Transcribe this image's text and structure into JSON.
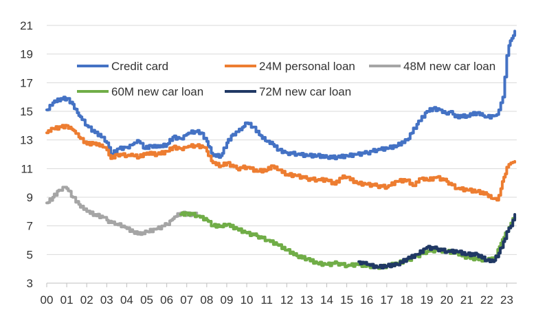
{
  "chart_data": {
    "type": "line",
    "title": "",
    "xlabel": "",
    "ylabel": "",
    "xlim": [
      2000,
      2023.5
    ],
    "ylim": [
      3,
      21
    ],
    "grid": true,
    "legend_position": "top-left",
    "y_ticks": [
      "3",
      "5",
      "7",
      "9",
      "11",
      "13",
      "15",
      "17",
      "19",
      "21"
    ],
    "x_ticks": [
      "00",
      "01",
      "02",
      "03",
      "04",
      "05",
      "06",
      "07",
      "08",
      "09",
      "10",
      "11",
      "12",
      "13",
      "14",
      "15",
      "16",
      "17",
      "18",
      "19",
      "20",
      "21",
      "22",
      "23"
    ],
    "series": [
      {
        "name": "Credit card",
        "color": "#4472c4",
        "points": [
          [
            2000.0,
            15.1
          ],
          [
            2000.3,
            15.6
          ],
          [
            2000.7,
            15.9
          ],
          [
            2001.0,
            15.9
          ],
          [
            2001.3,
            15.5
          ],
          [
            2001.6,
            14.7
          ],
          [
            2002.0,
            14.0
          ],
          [
            2002.4,
            13.5
          ],
          [
            2002.8,
            13.2
          ],
          [
            2003.0,
            12.8
          ],
          [
            2003.2,
            12.0
          ],
          [
            2003.6,
            12.4
          ],
          [
            2004.0,
            12.5
          ],
          [
            2004.3,
            12.7
          ],
          [
            2004.6,
            12.9
          ],
          [
            2004.9,
            12.4
          ],
          [
            2005.2,
            12.6
          ],
          [
            2005.6,
            12.5
          ],
          [
            2006.0,
            12.7
          ],
          [
            2006.3,
            13.2
          ],
          [
            2006.7,
            13.1
          ],
          [
            2007.0,
            13.4
          ],
          [
            2007.4,
            13.6
          ],
          [
            2007.7,
            13.5
          ],
          [
            2008.0,
            12.9
          ],
          [
            2008.3,
            11.9
          ],
          [
            2008.7,
            11.9
          ],
          [
            2009.0,
            12.8
          ],
          [
            2009.3,
            13.4
          ],
          [
            2009.7,
            13.7
          ],
          [
            2010.0,
            14.2
          ],
          [
            2010.3,
            13.9
          ],
          [
            2010.7,
            13.3
          ],
          [
            2011.0,
            12.9
          ],
          [
            2011.3,
            12.7
          ],
          [
            2011.6,
            12.3
          ],
          [
            2012.0,
            12.1
          ],
          [
            2012.5,
            12.0
          ],
          [
            2013.0,
            11.9
          ],
          [
            2013.5,
            11.9
          ],
          [
            2014.0,
            11.8
          ],
          [
            2014.5,
            11.8
          ],
          [
            2015.0,
            11.9
          ],
          [
            2015.5,
            12.0
          ],
          [
            2016.0,
            12.1
          ],
          [
            2016.5,
            12.3
          ],
          [
            2017.0,
            12.4
          ],
          [
            2017.5,
            12.6
          ],
          [
            2018.0,
            13.0
          ],
          [
            2018.5,
            14.1
          ],
          [
            2019.0,
            15.0
          ],
          [
            2019.3,
            15.2
          ],
          [
            2019.7,
            15.1
          ],
          [
            2020.0,
            14.8
          ],
          [
            2020.2,
            15.0
          ],
          [
            2020.4,
            14.6
          ],
          [
            2021.0,
            14.7
          ],
          [
            2021.5,
            14.9
          ],
          [
            2021.8,
            14.7
          ],
          [
            2022.0,
            14.6
          ],
          [
            2022.4,
            14.7
          ],
          [
            2022.6,
            15.1
          ],
          [
            2022.8,
            16.0
          ],
          [
            2022.9,
            17.4
          ],
          [
            2023.0,
            18.9
          ],
          [
            2023.1,
            19.6
          ],
          [
            2023.25,
            20.1
          ],
          [
            2023.4,
            20.6
          ]
        ]
      },
      {
        "name": "24M personal loan",
        "color": "#ed7d31",
        "points": [
          [
            2000.0,
            13.5
          ],
          [
            2000.3,
            13.8
          ],
          [
            2000.7,
            13.9
          ],
          [
            2001.0,
            14.0
          ],
          [
            2001.3,
            13.7
          ],
          [
            2001.6,
            13.2
          ],
          [
            2002.0,
            12.7
          ],
          [
            2002.4,
            12.8
          ],
          [
            2002.8,
            12.5
          ],
          [
            2003.0,
            12.3
          ],
          [
            2003.2,
            11.7
          ],
          [
            2003.5,
            12.0
          ],
          [
            2004.0,
            11.9
          ],
          [
            2004.3,
            11.9
          ],
          [
            2004.6,
            11.8
          ],
          [
            2005.0,
            12.1
          ],
          [
            2005.5,
            12.0
          ],
          [
            2006.0,
            12.2
          ],
          [
            2006.3,
            12.5
          ],
          [
            2006.7,
            12.4
          ],
          [
            2007.0,
            12.5
          ],
          [
            2007.4,
            12.6
          ],
          [
            2007.8,
            12.5
          ],
          [
            2008.0,
            12.2
          ],
          [
            2008.3,
            11.4
          ],
          [
            2008.7,
            11.2
          ],
          [
            2009.0,
            11.4
          ],
          [
            2009.5,
            11.0
          ],
          [
            2010.0,
            11.1
          ],
          [
            2010.5,
            10.8
          ],
          [
            2011.0,
            10.9
          ],
          [
            2011.3,
            11.2
          ],
          [
            2011.6,
            10.9
          ],
          [
            2012.0,
            10.6
          ],
          [
            2012.5,
            10.5
          ],
          [
            2013.0,
            10.3
          ],
          [
            2013.5,
            10.2
          ],
          [
            2014.0,
            10.2
          ],
          [
            2014.4,
            9.9
          ],
          [
            2014.8,
            10.5
          ],
          [
            2015.0,
            10.4
          ],
          [
            2015.5,
            10.0
          ],
          [
            2016.0,
            9.9
          ],
          [
            2016.5,
            9.8
          ],
          [
            2017.0,
            9.7
          ],
          [
            2017.5,
            10.1
          ],
          [
            2018.0,
            10.2
          ],
          [
            2018.3,
            9.8
          ],
          [
            2018.7,
            10.3
          ],
          [
            2019.0,
            10.2
          ],
          [
            2019.5,
            10.4
          ],
          [
            2020.0,
            10.1
          ],
          [
            2020.5,
            9.6
          ],
          [
            2021.0,
            9.5
          ],
          [
            2021.5,
            9.4
          ],
          [
            2022.0,
            9.2
          ],
          [
            2022.3,
            8.9
          ],
          [
            2022.5,
            8.8
          ],
          [
            2022.7,
            9.6
          ],
          [
            2022.85,
            10.4
          ],
          [
            2023.0,
            11.1
          ],
          [
            2023.2,
            11.4
          ],
          [
            2023.4,
            11.5
          ]
        ]
      },
      {
        "name": "48M new car loan",
        "color": "#a5a5a5",
        "points": [
          [
            2000.0,
            8.6
          ],
          [
            2000.3,
            9.0
          ],
          [
            2000.6,
            9.5
          ],
          [
            2000.8,
            9.7
          ],
          [
            2001.0,
            9.6
          ],
          [
            2001.3,
            9.0
          ],
          [
            2001.6,
            8.5
          ],
          [
            2002.0,
            8.0
          ],
          [
            2002.4,
            7.8
          ],
          [
            2002.8,
            7.6
          ],
          [
            2003.0,
            7.4
          ],
          [
            2003.4,
            7.1
          ],
          [
            2003.8,
            7.0
          ],
          [
            2004.0,
            6.8
          ],
          [
            2004.3,
            6.6
          ],
          [
            2004.7,
            6.4
          ],
          [
            2005.0,
            6.6
          ],
          [
            2005.5,
            6.8
          ],
          [
            2006.0,
            7.1
          ],
          [
            2006.3,
            7.5
          ],
          [
            2006.7,
            7.9
          ],
          [
            2007.0,
            7.8
          ],
          [
            2007.5,
            7.8
          ]
        ]
      },
      {
        "name": "60M new car loan",
        "color": "#70ad47",
        "points": [
          [
            2006.7,
            7.8
          ],
          [
            2007.0,
            7.9
          ],
          [
            2007.5,
            7.7
          ],
          [
            2008.0,
            7.4
          ],
          [
            2008.3,
            7.0
          ],
          [
            2008.7,
            7.0
          ],
          [
            2009.0,
            7.1
          ],
          [
            2009.5,
            6.8
          ],
          [
            2010.0,
            6.5
          ],
          [
            2010.5,
            6.3
          ],
          [
            2011.0,
            6.0
          ],
          [
            2011.5,
            5.7
          ],
          [
            2012.0,
            5.3
          ],
          [
            2012.5,
            4.9
          ],
          [
            2013.0,
            4.7
          ],
          [
            2013.5,
            4.4
          ],
          [
            2014.0,
            4.3
          ],
          [
            2014.5,
            4.4
          ],
          [
            2015.0,
            4.2
          ],
          [
            2015.5,
            4.3
          ],
          [
            2016.0,
            4.2
          ],
          [
            2016.5,
            4.1
          ],
          [
            2017.0,
            4.2
          ],
          [
            2017.5,
            4.4
          ],
          [
            2018.0,
            4.6
          ],
          [
            2018.5,
            4.9
          ],
          [
            2019.0,
            5.2
          ],
          [
            2019.5,
            5.3
          ],
          [
            2020.0,
            5.2
          ],
          [
            2020.5,
            5.1
          ],
          [
            2021.0,
            4.8
          ],
          [
            2021.5,
            4.7
          ],
          [
            2022.0,
            4.6
          ],
          [
            2022.4,
            4.8
          ],
          [
            2022.7,
            5.8
          ],
          [
            2023.0,
            6.6
          ],
          [
            2023.2,
            7.2
          ],
          [
            2023.4,
            7.6
          ]
        ]
      },
      {
        "name": "72M new car loan",
        "color": "#203864",
        "points": [
          [
            2015.6,
            4.5
          ],
          [
            2016.0,
            4.3
          ],
          [
            2016.5,
            4.1
          ],
          [
            2017.0,
            4.2
          ],
          [
            2017.5,
            4.3
          ],
          [
            2018.0,
            4.7
          ],
          [
            2018.5,
            5.0
          ],
          [
            2019.0,
            5.5
          ],
          [
            2019.5,
            5.4
          ],
          [
            2020.0,
            5.2
          ],
          [
            2020.5,
            5.2
          ],
          [
            2021.0,
            5.0
          ],
          [
            2021.5,
            5.0
          ],
          [
            2022.0,
            4.6
          ],
          [
            2022.3,
            4.5
          ],
          [
            2022.6,
            5.1
          ],
          [
            2022.9,
            6.1
          ],
          [
            2023.0,
            6.6
          ],
          [
            2023.2,
            7.0
          ],
          [
            2023.4,
            7.8
          ]
        ]
      }
    ],
    "legend": [
      {
        "label": "Credit card",
        "color": "#4472c4"
      },
      {
        "label": "24M personal loan",
        "color": "#ed7d31"
      },
      {
        "label": "48M new car loan",
        "color": "#a5a5a5"
      },
      {
        "label": "60M new car loan",
        "color": "#70ad47"
      },
      {
        "label": "72M new car loan",
        "color": "#203864"
      }
    ]
  }
}
